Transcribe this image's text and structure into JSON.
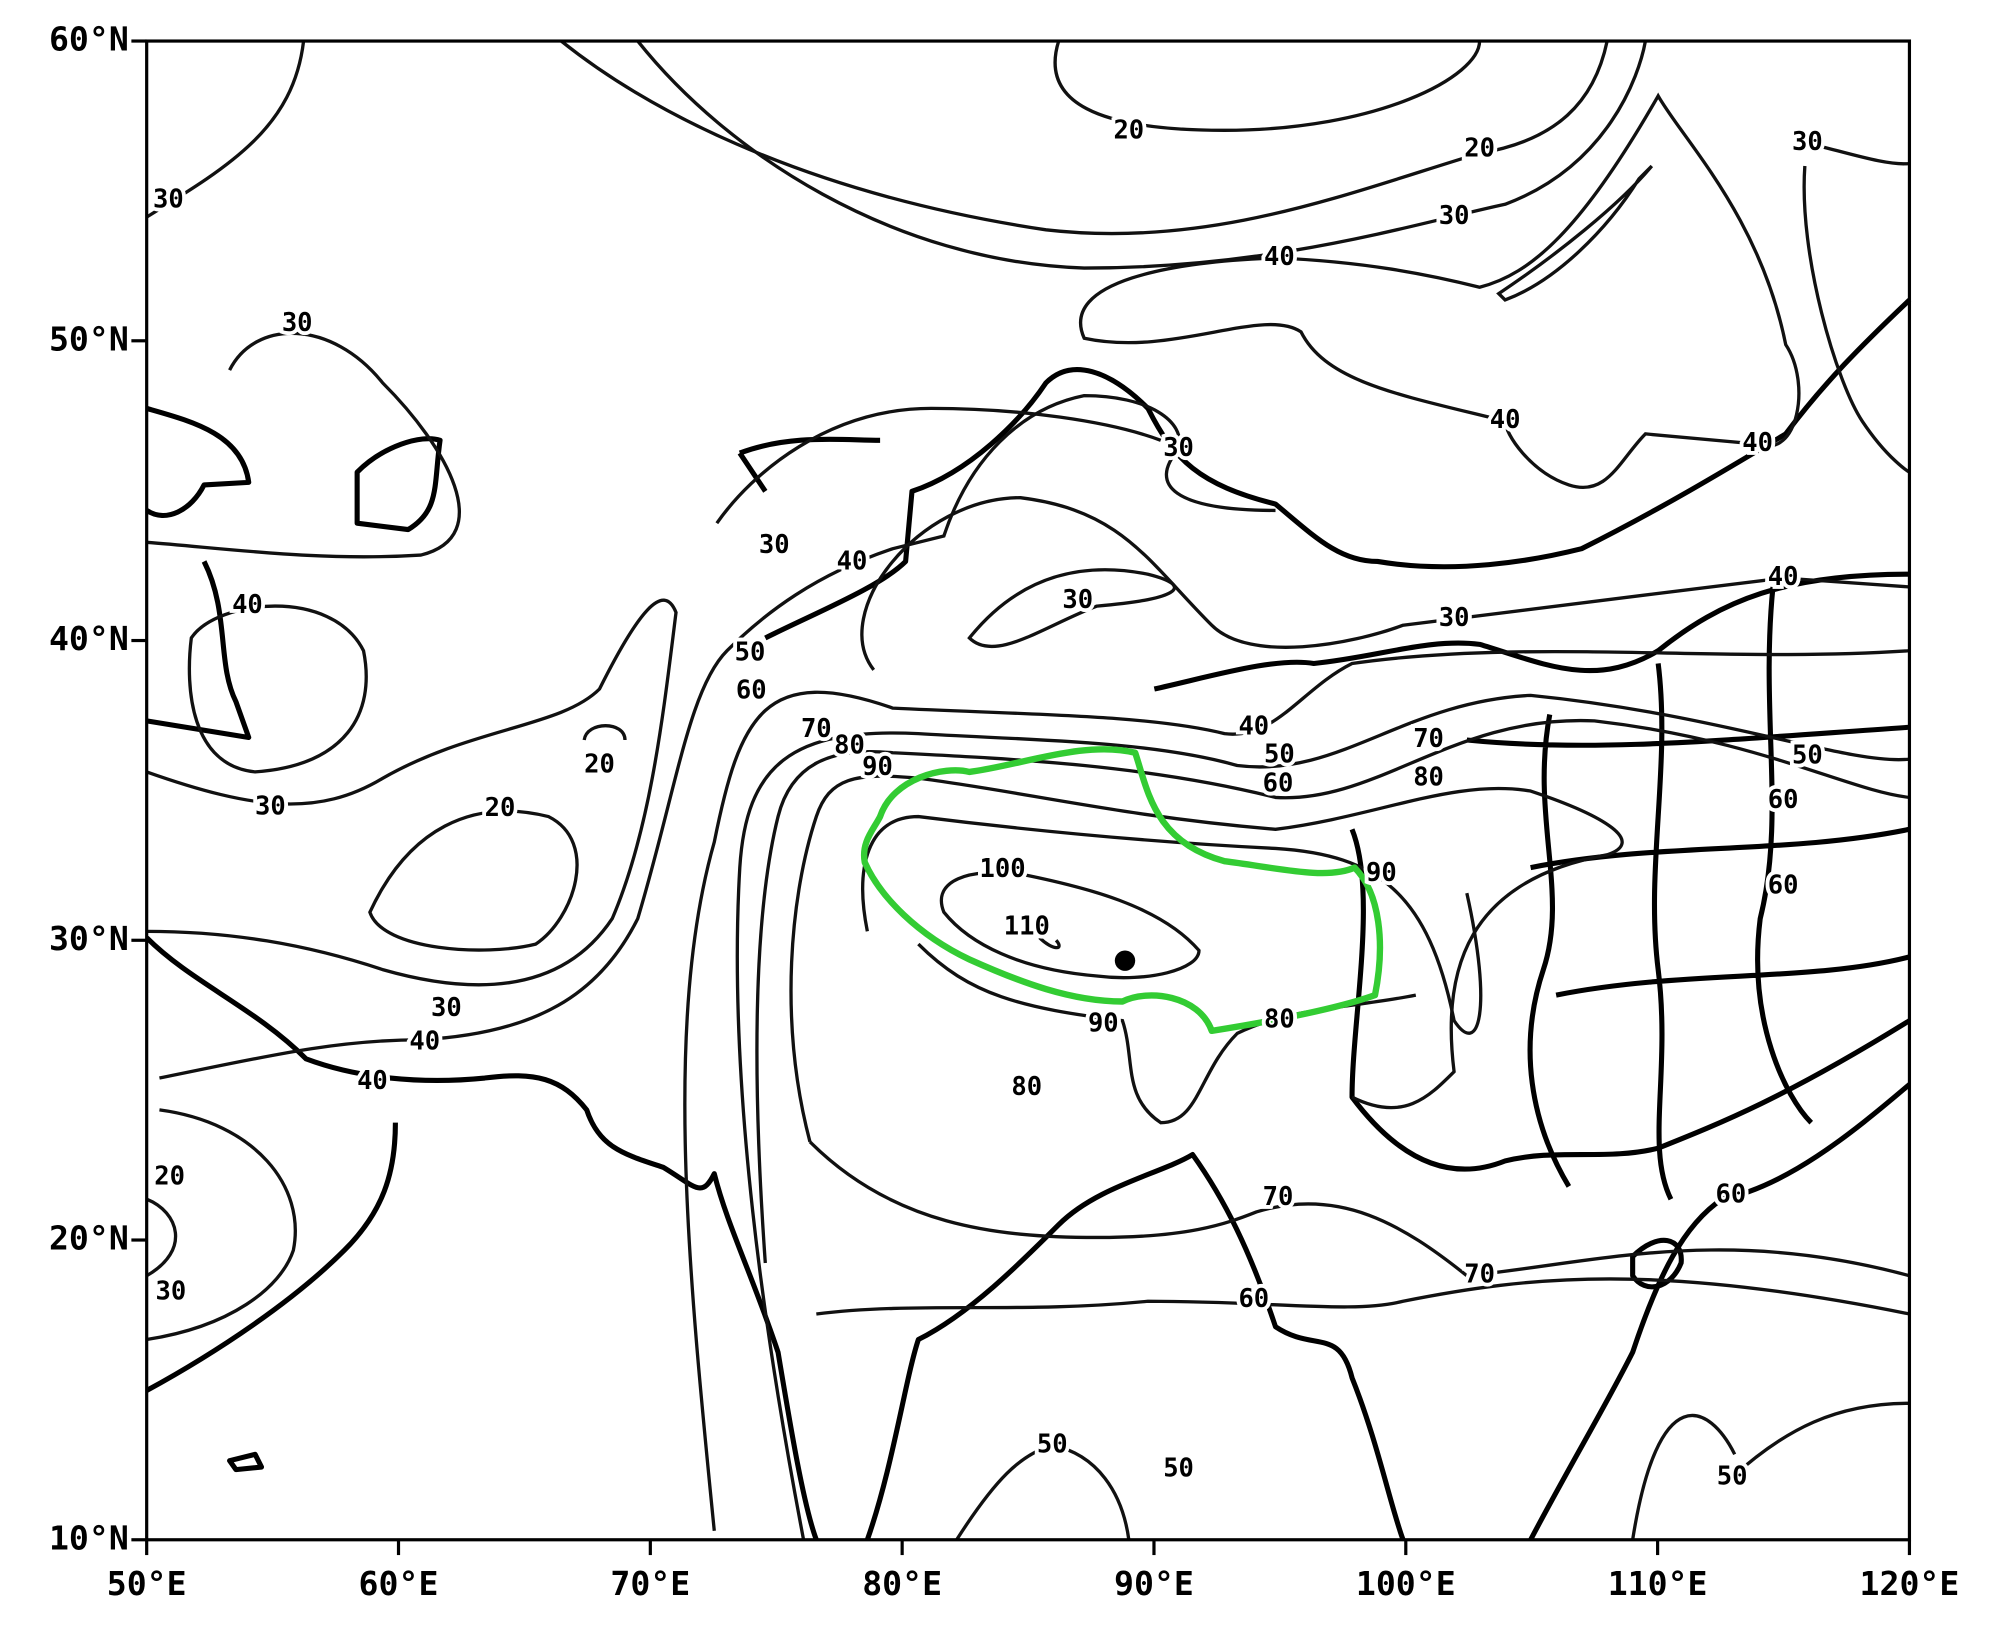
{
  "axes": {
    "lat_labels": [
      "60°N",
      "50°N",
      "40°N",
      "30°N",
      "20°N",
      "10°N"
    ],
    "lon_labels": [
      "50°E",
      "60°E",
      "70°E",
      "80°E",
      "90°E",
      "100°E",
      "110°E",
      "120°E"
    ]
  },
  "contour_labels": [
    "30",
    "20",
    "20",
    "30",
    "30",
    "40",
    "30",
    "40",
    "40",
    "30",
    "30",
    "40",
    "30",
    "40",
    "30",
    "40",
    "50",
    "60",
    "70",
    "80",
    "90",
    "40",
    "50",
    "60",
    "70",
    "80",
    "50",
    "60",
    "20",
    "30",
    "20",
    "100",
    "110",
    "90",
    "60",
    "30",
    "40",
    "40",
    "90",
    "80",
    "80",
    "20",
    "70",
    "60",
    "30",
    "70",
    "60",
    "50",
    "50",
    "50"
  ]
}
